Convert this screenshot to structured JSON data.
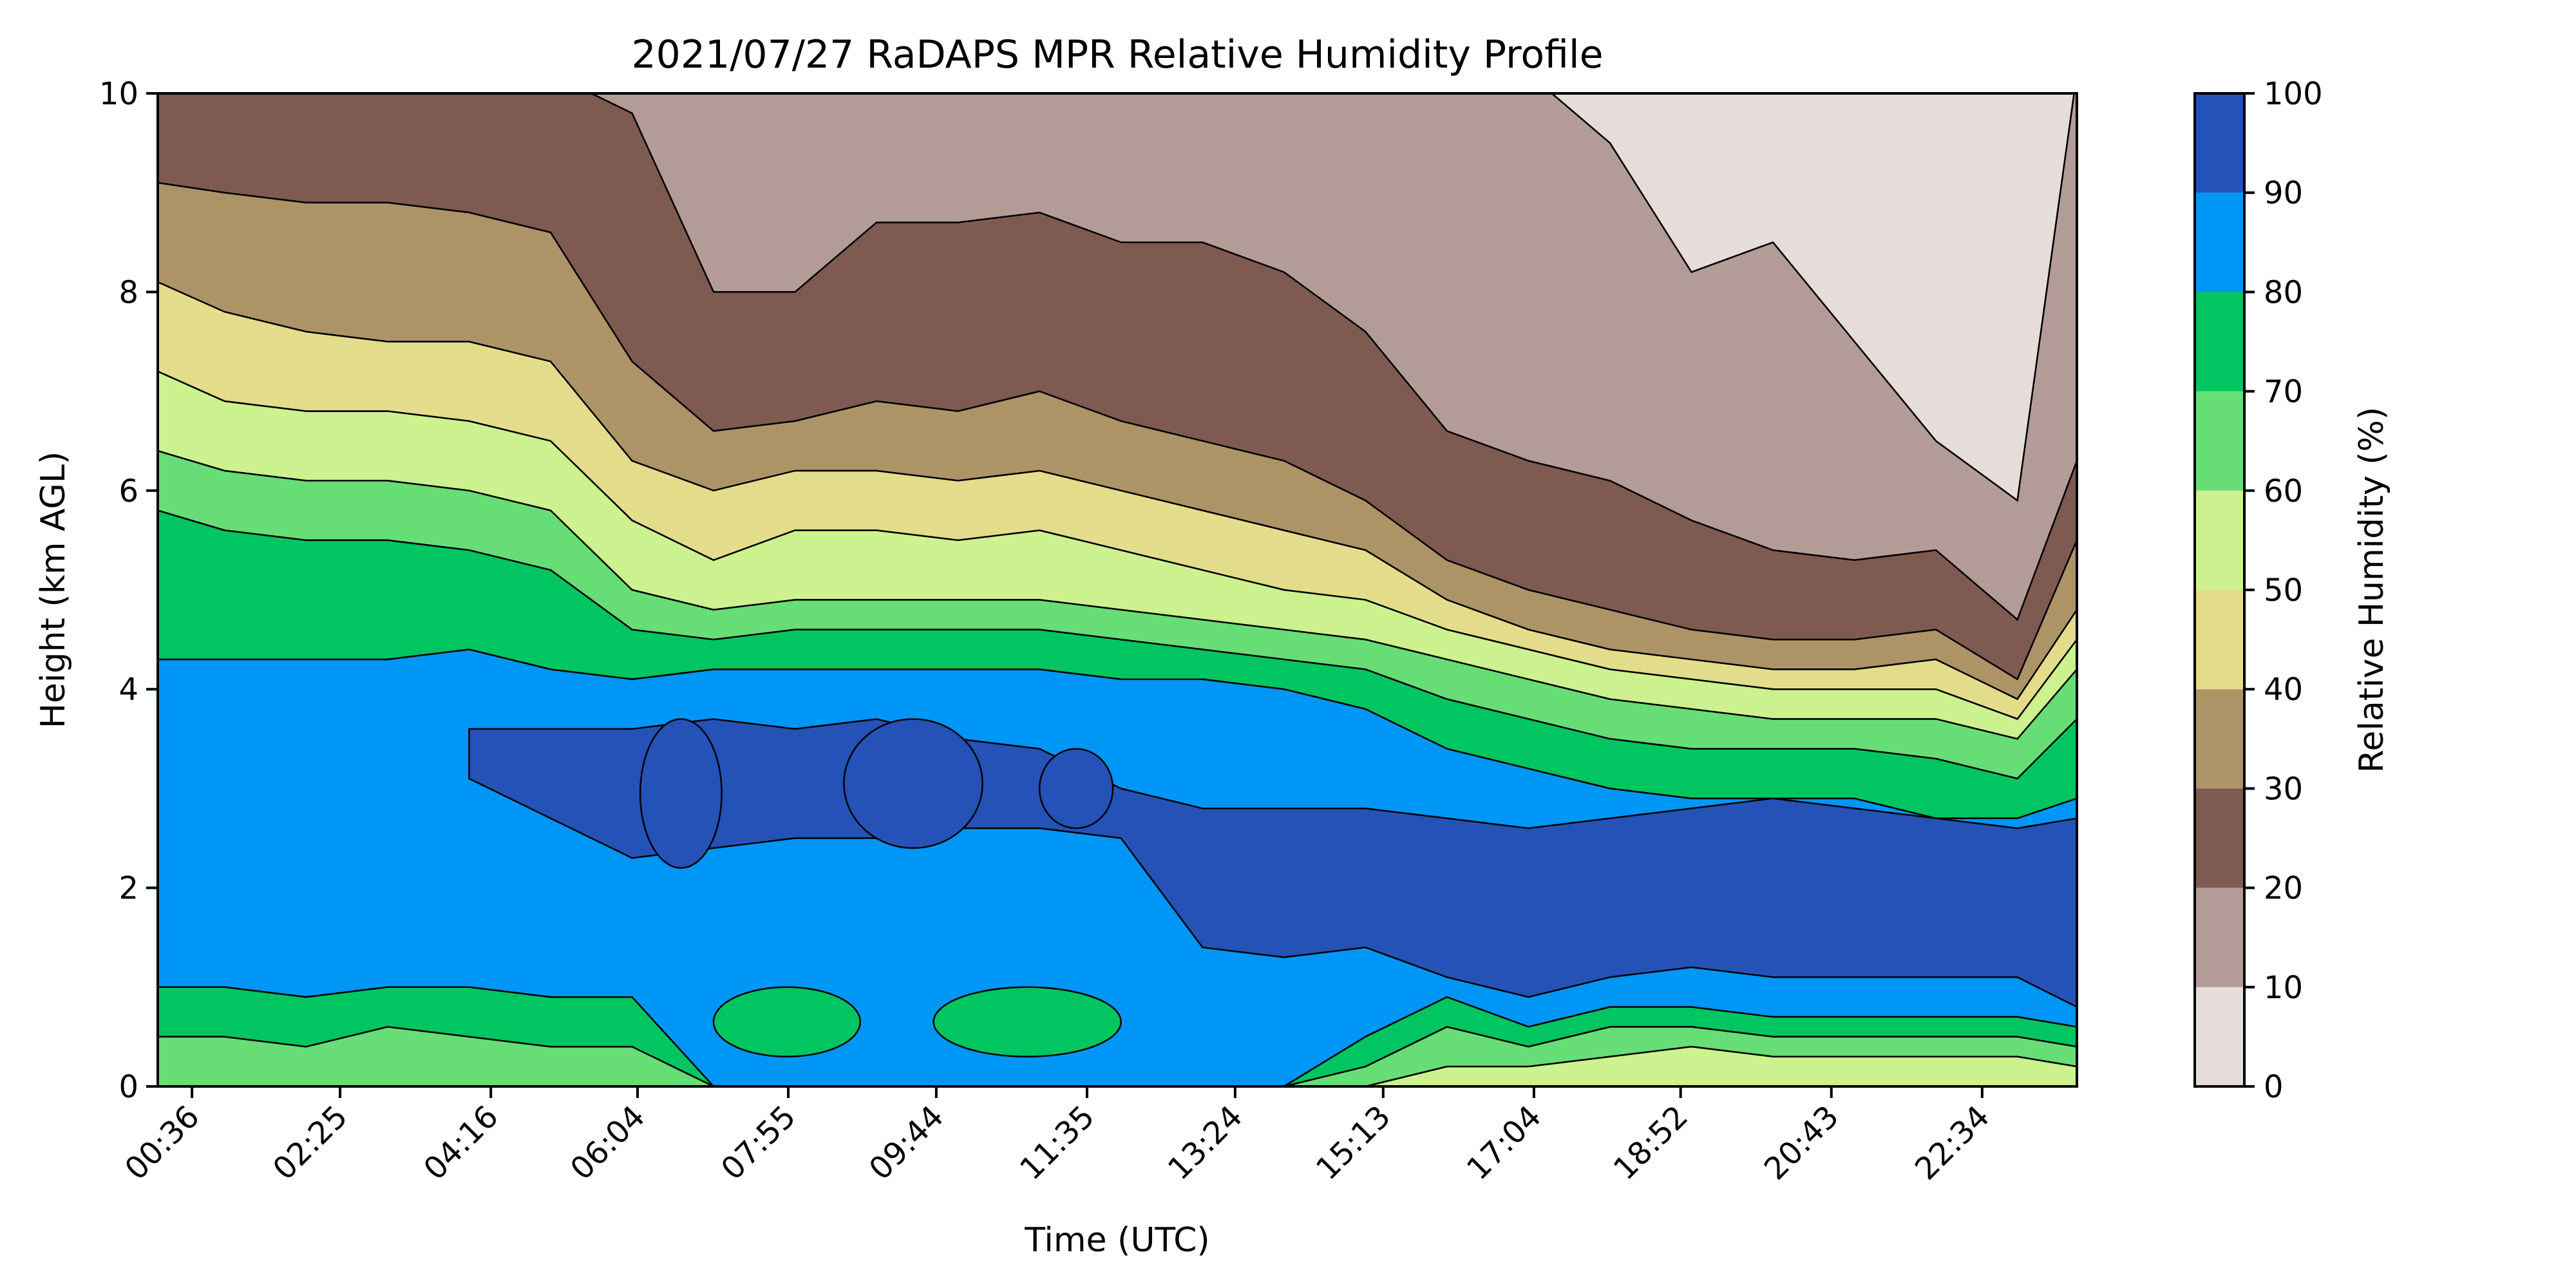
{
  "chart_data": {
    "type": "heatmap",
    "subtype": "filled-contour",
    "title": "2021/07/27 RaDAPS MPR Relative Humidity Profile",
    "xlabel": "Time (UTC)",
    "ylabel": "Height (km AGL)",
    "colorbar_label": "Relative Humidity (%)",
    "x_range_hours": [
      0.18,
      23.73
    ],
    "ylim": [
      0,
      10
    ],
    "x_ticks": [
      {
        "hour": 0.6,
        "label": "00:36"
      },
      {
        "hour": 2.417,
        "label": "02:25"
      },
      {
        "hour": 4.267,
        "label": "04:16"
      },
      {
        "hour": 6.067,
        "label": "06:04"
      },
      {
        "hour": 7.917,
        "label": "07:55"
      },
      {
        "hour": 9.733,
        "label": "09:44"
      },
      {
        "hour": 11.583,
        "label": "11:35"
      },
      {
        "hour": 13.4,
        "label": "13:24"
      },
      {
        "hour": 15.217,
        "label": "15:13"
      },
      {
        "hour": 17.067,
        "label": "17:04"
      },
      {
        "hour": 18.867,
        "label": "18:52"
      },
      {
        "hour": 20.717,
        "label": "20:43"
      },
      {
        "hour": 22.567,
        "label": "22:34"
      }
    ],
    "y_ticks": [
      0,
      2,
      4,
      6,
      8,
      10
    ],
    "levels": [
      0,
      10,
      20,
      30,
      40,
      50,
      60,
      70,
      80,
      90,
      100
    ],
    "level_colors": [
      "#e6dcda",
      "#b39c97",
      "#7e5a51",
      "#ac9467",
      "#e3dd8b",
      "#cbf28e",
      "#67dd76",
      "#00c560",
      "#0096f5",
      "#2452b7"
    ],
    "colorbar_ticks": [
      "0",
      "10",
      "20",
      "30",
      "40",
      "50",
      "60",
      "70",
      "80",
      "90",
      "100"
    ],
    "grid": false,
    "contour_boundaries_km": {
      "hours": [
        0.18,
        1.0,
        2.0,
        3.0,
        4.0,
        5.0,
        6.0,
        7.0,
        8.0,
        9.0,
        10.0,
        11.0,
        12.0,
        13.0,
        14.0,
        15.0,
        16.0,
        17.0,
        18.0,
        19.0,
        20.0,
        21.0,
        22.0,
        23.0,
        23.73
      ],
      "rh_10": [
        10.2,
        10.2,
        10.2,
        10.2,
        10.2,
        10.2,
        10.2,
        10.2,
        10.2,
        10.2,
        10.2,
        10.2,
        10.2,
        10.2,
        10.2,
        10.2,
        10.2,
        10.2,
        9.5,
        8.2,
        8.5,
        7.5,
        6.5,
        5.9,
        10.2
      ],
      "rh_20": [
        10.2,
        10.2,
        10.2,
        10.2,
        10.2,
        10.2,
        9.8,
        8.0,
        8.0,
        8.7,
        8.7,
        8.8,
        8.5,
        8.5,
        8.2,
        7.6,
        6.6,
        6.3,
        6.1,
        5.7,
        5.4,
        5.3,
        5.4,
        4.7,
        6.3
      ],
      "rh_30": [
        9.1,
        9.0,
        8.9,
        8.9,
        8.8,
        8.6,
        7.3,
        6.6,
        6.7,
        6.9,
        6.8,
        7.0,
        6.7,
        6.5,
        6.3,
        5.9,
        5.3,
        5.0,
        4.8,
        4.6,
        4.5,
        4.5,
        4.6,
        4.1,
        5.5
      ],
      "rh_40": [
        8.1,
        7.8,
        7.6,
        7.5,
        7.5,
        7.3,
        6.3,
        6.0,
        6.2,
        6.2,
        6.1,
        6.2,
        6.0,
        5.8,
        5.6,
        5.4,
        4.9,
        4.6,
        4.4,
        4.3,
        4.2,
        4.2,
        4.3,
        3.9,
        4.8
      ],
      "rh_50": [
        7.2,
        6.9,
        6.8,
        6.8,
        6.7,
        6.5,
        5.7,
        5.3,
        5.6,
        5.6,
        5.5,
        5.6,
        5.4,
        5.2,
        5.0,
        4.9,
        4.6,
        4.4,
        4.2,
        4.1,
        4.0,
        4.0,
        4.0,
        3.7,
        4.5
      ],
      "rh_60": [
        6.4,
        6.2,
        6.1,
        6.1,
        6.0,
        5.8,
        5.0,
        4.8,
        4.9,
        4.9,
        4.9,
        4.9,
        4.8,
        4.7,
        4.6,
        4.5,
        4.3,
        4.1,
        3.9,
        3.8,
        3.7,
        3.7,
        3.7,
        3.5,
        4.2
      ],
      "rh_70": [
        5.8,
        5.6,
        5.5,
        5.5,
        5.4,
        5.2,
        4.6,
        4.5,
        4.6,
        4.6,
        4.6,
        4.6,
        4.5,
        4.4,
        4.3,
        4.2,
        3.9,
        3.7,
        3.5,
        3.4,
        3.4,
        3.4,
        3.3,
        3.1,
        3.7
      ],
      "rh_80": [
        4.3,
        4.3,
        4.3,
        4.3,
        4.4,
        4.2,
        4.1,
        4.2,
        4.2,
        4.2,
        4.2,
        4.2,
        4.1,
        4.1,
        4.0,
        3.8,
        3.4,
        3.2,
        3.0,
        2.9,
        2.9,
        2.9,
        2.7,
        2.7,
        2.9
      ],
      "rh_90": [
        null,
        null,
        null,
        null,
        3.6,
        null,
        3.6,
        3.7,
        3.6,
        3.7,
        3.5,
        3.4,
        3.0,
        2.8,
        2.8,
        2.8,
        2.7,
        2.6,
        2.7,
        2.8,
        2.9,
        2.8,
        2.7,
        2.6,
        2.7
      ],
      "rh_90_low": [
        null,
        null,
        null,
        null,
        3.1,
        null,
        2.3,
        2.4,
        2.5,
        2.5,
        2.6,
        2.6,
        2.5,
        1.4,
        1.3,
        1.4,
        1.1,
        0.9,
        1.1,
        1.2,
        1.1,
        1.1,
        1.1,
        1.1,
        0.8
      ],
      "rh_80_low": [
        1.0,
        1.0,
        0.9,
        1.0,
        1.0,
        0.9,
        0.9,
        0.0,
        0.0,
        0.0,
        0.0,
        0.0,
        0.0,
        0.0,
        0.0,
        0.5,
        0.9,
        0.6,
        0.8,
        0.8,
        0.7,
        0.7,
        0.7,
        0.7,
        0.6
      ],
      "rh_70_low": [
        0.5,
        0.5,
        0.4,
        0.6,
        0.5,
        0.4,
        0.4,
        0.0,
        0.0,
        0.0,
        0.0,
        0.0,
        0.0,
        0.0,
        0.0,
        0.2,
        0.6,
        0.4,
        0.6,
        0.6,
        0.5,
        0.5,
        0.5,
        0.5,
        0.4
      ],
      "rh_60_low": [
        0.0,
        0.0,
        0.0,
        0.0,
        0.0,
        0.0,
        0.0,
        0.0,
        0.0,
        0.0,
        0.0,
        0.0,
        0.0,
        0.0,
        0.0,
        0.0,
        0.2,
        0.2,
        0.3,
        0.4,
        0.3,
        0.3,
        0.3,
        0.3,
        0.2
      ]
    },
    "moist_patches": [
      {
        "rh_band": "90-100",
        "hour_range": [
          6.1,
          7.1
        ],
        "height_range_km": [
          2.2,
          3.7
        ]
      },
      {
        "rh_band": "90-100",
        "hour_range": [
          8.6,
          10.3
        ],
        "height_range_km": [
          2.4,
          3.7
        ]
      },
      {
        "rh_band": "90-100",
        "hour_range": [
          11.0,
          11.9
        ],
        "height_range_km": [
          2.6,
          3.4
        ]
      },
      {
        "rh_band": "70-80",
        "hour_range": [
          7.0,
          8.8
        ],
        "height_range_km": [
          0.3,
          1.0
        ]
      },
      {
        "rh_band": "70-80",
        "hour_range": [
          9.7,
          12.0
        ],
        "height_range_km": [
          0.3,
          1.0
        ]
      }
    ]
  }
}
